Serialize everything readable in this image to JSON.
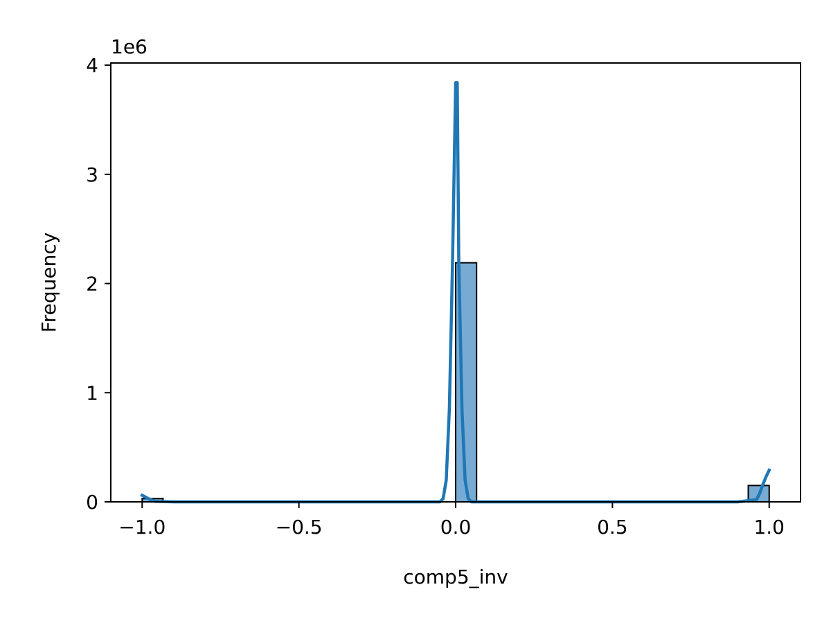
{
  "chart_data": {
    "type": "bar",
    "subtype": "histogram-with-kde",
    "title": "",
    "xlabel": "comp5_inv",
    "ylabel": "Frequency",
    "y_scale_label": "1e6",
    "xlim": [
      -1.1,
      1.1
    ],
    "ylim": [
      0,
      4020000
    ],
    "x_ticks": [
      -1.0,
      -0.5,
      0.0,
      0.5,
      1.0
    ],
    "x_tick_labels": [
      "−1.0",
      "−0.5",
      "0.0",
      "0.5",
      "1.0"
    ],
    "y_ticks": [
      0,
      1000000,
      2000000,
      3000000,
      4000000
    ],
    "y_tick_labels": [
      "0",
      "1",
      "2",
      "3",
      "4"
    ],
    "bin_width": 0.0667,
    "bins": [
      {
        "x0": -1.0,
        "x1": -0.9333,
        "count": 30000
      },
      {
        "x0": 0.0,
        "x1": 0.0667,
        "count": 2190000
      },
      {
        "x0": 0.9333,
        "x1": 1.0,
        "count": 150000
      }
    ],
    "kde_curve": {
      "x": [
        -1.0,
        -0.98,
        -0.96,
        -0.9,
        -0.5,
        -0.05,
        -0.04,
        -0.03,
        -0.02,
        -0.01,
        0.0,
        0.005,
        0.01,
        0.02,
        0.03,
        0.04,
        0.05,
        0.5,
        0.9,
        0.96,
        0.97,
        0.98,
        0.99,
        1.0
      ],
      "y": [
        60000,
        30000,
        5000,
        0,
        0,
        0,
        30000,
        200000,
        850000,
        2200000,
        3840000,
        3840000,
        2200000,
        850000,
        200000,
        30000,
        0,
        0,
        0,
        20000,
        80000,
        160000,
        230000,
        290000
      ]
    },
    "colors": {
      "bar_fill": "#77abd4",
      "bar_edge": "#000000",
      "kde_line": "#1f77b4"
    },
    "grid": false,
    "legend": "none"
  }
}
